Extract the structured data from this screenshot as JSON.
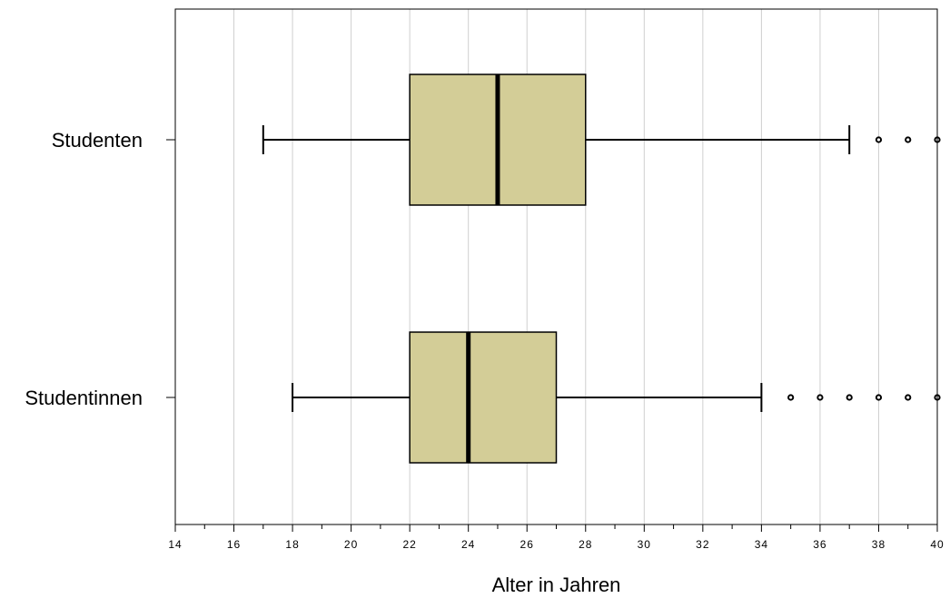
{
  "chart_data": {
    "type": "boxplot",
    "orientation": "horizontal",
    "title": "",
    "xlabel": "Alter in Jahren",
    "ylabel": "",
    "xlim": [
      14,
      40
    ],
    "xticks": [
      14,
      16,
      18,
      20,
      22,
      24,
      26,
      28,
      30,
      32,
      34,
      36,
      38,
      40
    ],
    "grid": "vertical",
    "box_color": "#d3cd97",
    "series": [
      {
        "name": "Studenten",
        "whisker_low": 17,
        "q1": 22,
        "median": 25,
        "q3": 28,
        "whisker_high": 37,
        "outliers": [
          38,
          39,
          40
        ]
      },
      {
        "name": "Studentinnen",
        "whisker_low": 18,
        "q1": 22,
        "median": 24,
        "q3": 27,
        "whisker_high": 34,
        "outliers": [
          35,
          36,
          37,
          38,
          39,
          40
        ]
      }
    ]
  }
}
